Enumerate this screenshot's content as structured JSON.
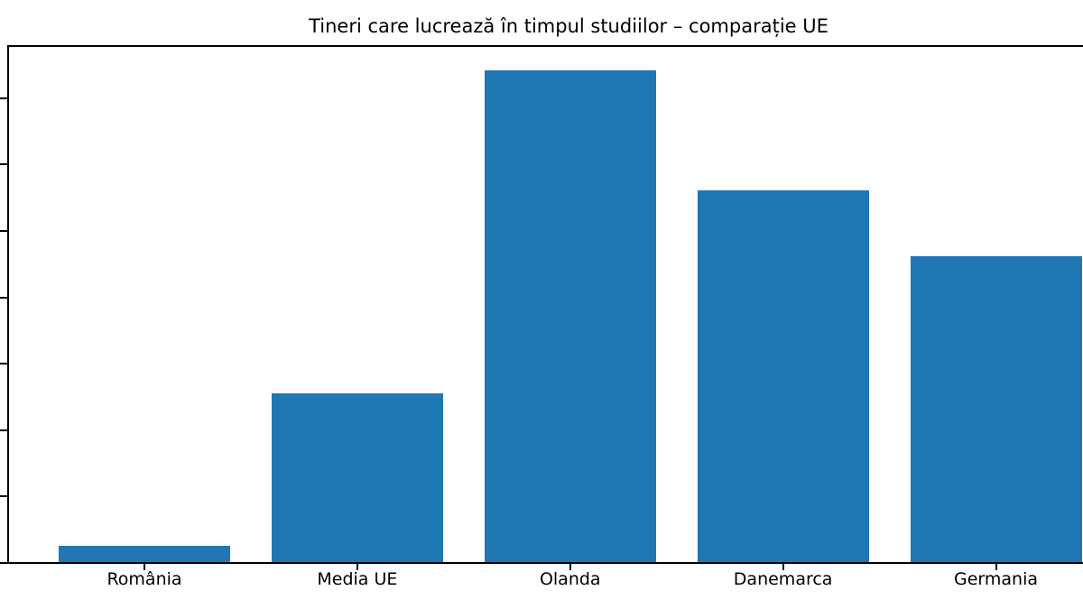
{
  "title": "Tineri care lucrează în timpul studiilor – comparație UE",
  "chart_data": {
    "type": "bar",
    "title": "Tineri care lucrează în timpul studiilor – comparație UE",
    "categories": [
      "România",
      "Media UE",
      "Olanda",
      "Danemarca",
      "Germania"
    ],
    "values": [
      2.5,
      25.4,
      74,
      56,
      46
    ],
    "xlabel": "",
    "ylabel": "",
    "ylim": [
      0,
      77.7
    ],
    "yticks": [
      0,
      10,
      20,
      30,
      40,
      50,
      60,
      70
    ],
    "ytick_labels_visible": false,
    "xtick_labels_visible": true,
    "grid": false,
    "legend": null,
    "bar_color": "#1f77b4"
  },
  "colors": {
    "bar": "#1f77b4",
    "axis": "#000000",
    "text": "#000000",
    "background": "#ffffff"
  }
}
